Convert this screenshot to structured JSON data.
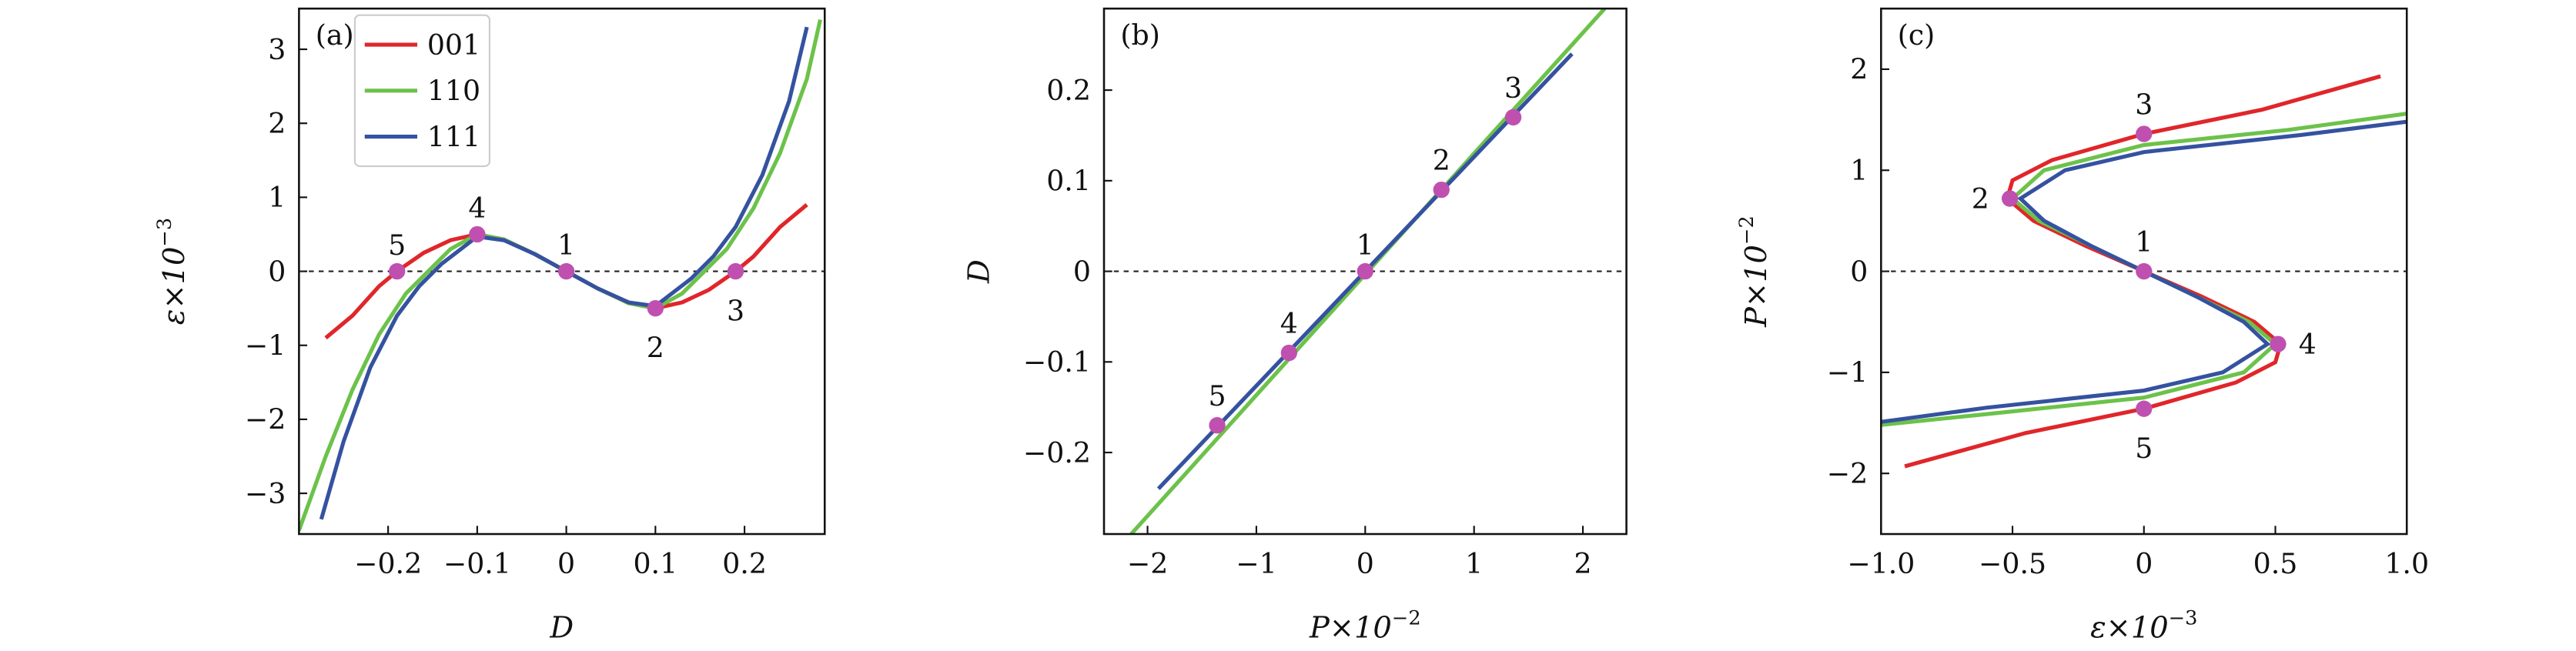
{
  "chart_data": [
    {
      "type": "line",
      "title": "(a)",
      "xlabel": "D",
      "ylabel": "ε×10",
      "ylabel_exp": "−3",
      "legend": "upper left",
      "hline": 0,
      "xlim": [
        -0.3,
        0.29
      ],
      "ylim": [
        -3.55,
        3.55
      ],
      "xticks": [
        {
          "value": -0.2,
          "label": "−0.2"
        },
        {
          "value": -0.1,
          "label": "−0.1"
        },
        0,
        0.1,
        0.2
      ],
      "yticks": [
        {
          "value": -3,
          "label": "−3"
        },
        {
          "value": -2,
          "label": "−2"
        },
        {
          "value": -1,
          "label": "−1"
        },
        0,
        1,
        2,
        3
      ],
      "series": [
        {
          "name": "001",
          "color": "#e0262a",
          "x": [
            -0.27,
            -0.24,
            -0.21,
            -0.19,
            -0.16,
            -0.13,
            -0.1,
            -0.07,
            -0.035,
            0,
            0.035,
            0.07,
            0.1,
            0.13,
            0.16,
            0.19,
            0.21,
            0.24,
            0.27
          ],
          "values": [
            -0.9,
            -0.6,
            -0.2,
            0,
            0.25,
            0.42,
            0.5,
            0.43,
            0.23,
            0,
            -0.23,
            -0.43,
            -0.5,
            -0.42,
            -0.25,
            0,
            0.2,
            0.6,
            0.9
          ]
        },
        {
          "name": "110",
          "color": "#6cc24a",
          "x": [
            -0.3,
            -0.27,
            -0.24,
            -0.21,
            -0.18,
            -0.155,
            -0.13,
            -0.1,
            -0.07,
            -0.035,
            0,
            0.035,
            0.07,
            0.1,
            0.13,
            0.155,
            0.18,
            0.21,
            0.24,
            0.27,
            0.285
          ],
          "values": [
            -3.5,
            -2.5,
            -1.6,
            -0.85,
            -0.3,
            0,
            0.3,
            0.5,
            0.43,
            0.23,
            0,
            -0.23,
            -0.43,
            -0.5,
            -0.3,
            0,
            0.3,
            0.85,
            1.6,
            2.6,
            3.4
          ]
        },
        {
          "name": "111",
          "color": "#3552a0",
          "x": [
            -0.275,
            -0.25,
            -0.22,
            -0.19,
            -0.165,
            -0.14,
            -0.1,
            -0.07,
            -0.035,
            0,
            0.035,
            0.07,
            0.1,
            0.14,
            0.165,
            0.19,
            0.22,
            0.25,
            0.27
          ],
          "values": [
            -3.35,
            -2.3,
            -1.3,
            -0.6,
            -0.2,
            0.1,
            0.47,
            0.42,
            0.23,
            0,
            -0.23,
            -0.42,
            -0.47,
            -0.1,
            0.2,
            0.6,
            1.3,
            2.3,
            3.3
          ]
        },
        {
          "mode": "markers",
          "color": "#c050b0",
          "x": [
            0,
            0.1,
            0.19,
            -0.1,
            -0.19
          ],
          "values": [
            0,
            -0.5,
            0,
            0.5,
            0
          ],
          "labels": [
            "1",
            "2",
            "3",
            "4",
            "5"
          ]
        }
      ]
    },
    {
      "type": "line",
      "title": "(b)",
      "xlabel": "P×10",
      "xlabel_exp": "−2",
      "ylabel": "D",
      "hline": 0,
      "xlim": [
        -2.4,
        2.4
      ],
      "ylim": [
        -0.29,
        0.29
      ],
      "xticks": [
        {
          "value": -2,
          "label": "−2"
        },
        {
          "value": -1,
          "label": "−1"
        },
        0,
        1,
        2
      ],
      "yticks": [
        {
          "value": -0.2,
          "label": "−0.2"
        },
        {
          "value": -0.1,
          "label": "−0.1"
        },
        0,
        0.1,
        0.2
      ],
      "series": [
        {
          "color": "#6cc24a",
          "x": [
            -2.15,
            2.2
          ],
          "values": [
            -0.29,
            0.29
          ]
        },
        {
          "color": "#3552a0",
          "x": [
            -1.9,
            1.9
          ],
          "values": [
            -0.24,
            0.24
          ]
        },
        {
          "mode": "markers",
          "color": "#c050b0",
          "x": [
            0,
            0.7,
            1.36,
            -0.7,
            -1.36
          ],
          "values": [
            0,
            0.09,
            0.17,
            -0.09,
            -0.17
          ],
          "labels": [
            "1",
            "2",
            "3",
            "4",
            "5"
          ]
        }
      ]
    },
    {
      "type": "line",
      "title": "(c)",
      "xlabel": "ε×10",
      "xlabel_exp": "−3",
      "ylabel": "P×10",
      "ylabel_exp": "−2",
      "hline": 0,
      "xlim": [
        -1,
        1
      ],
      "ylim": [
        -2.6,
        2.6
      ],
      "xticks": [
        {
          "value": -1,
          "label": "−1.0"
        },
        {
          "value": -0.5,
          "label": "−0.5"
        },
        0,
        0.5,
        {
          "value": 1,
          "label": "1.0"
        }
      ],
      "yticks": [
        {
          "value": -2,
          "label": "−2"
        },
        {
          "value": -1,
          "label": "−1"
        },
        0,
        1,
        2
      ],
      "series": [
        {
          "color": "#e0262a",
          "x": [
            -0.91,
            -0.45,
            0,
            0.35,
            0.5,
            0.52,
            0.42,
            0.22,
            0,
            -0.22,
            -0.42,
            -0.52,
            -0.5,
            -0.35,
            0,
            0.45,
            0.9
          ],
          "values": [
            -1.93,
            -1.6,
            -1.36,
            -1.1,
            -0.9,
            -0.72,
            -0.5,
            -0.25,
            0,
            0.25,
            0.5,
            0.72,
            0.9,
            1.1,
            1.36,
            1.6,
            1.93
          ]
        },
        {
          "color": "#6cc24a",
          "x": [
            -1,
            -0.55,
            0,
            0.38,
            0.5,
            0.4,
            0.2,
            0,
            -0.2,
            -0.4,
            -0.5,
            -0.38,
            0,
            0.55,
            1
          ],
          "values": [
            -1.52,
            -1.4,
            -1.25,
            -1.0,
            -0.72,
            -0.5,
            -0.25,
            0,
            0.25,
            0.5,
            0.72,
            1.0,
            1.25,
            1.4,
            1.56
          ]
        },
        {
          "color": "#3552a0",
          "x": [
            -1,
            -0.6,
            0,
            0.3,
            0.47,
            0.38,
            0.2,
            0,
            -0.2,
            -0.38,
            -0.47,
            -0.3,
            0,
            0.6,
            1
          ],
          "values": [
            -1.49,
            -1.35,
            -1.18,
            -1.0,
            -0.72,
            -0.5,
            -0.25,
            0,
            0.25,
            0.5,
            0.72,
            1.0,
            1.18,
            1.35,
            1.48
          ]
        },
        {
          "mode": "markers",
          "color": "#c050b0",
          "x": [
            0,
            -0.51,
            0,
            0.51,
            0
          ],
          "values": [
            0,
            0.72,
            1.36,
            -0.72,
            -1.36
          ],
          "labels": [
            "1",
            "2",
            "3",
            "4",
            "5"
          ]
        }
      ]
    }
  ]
}
